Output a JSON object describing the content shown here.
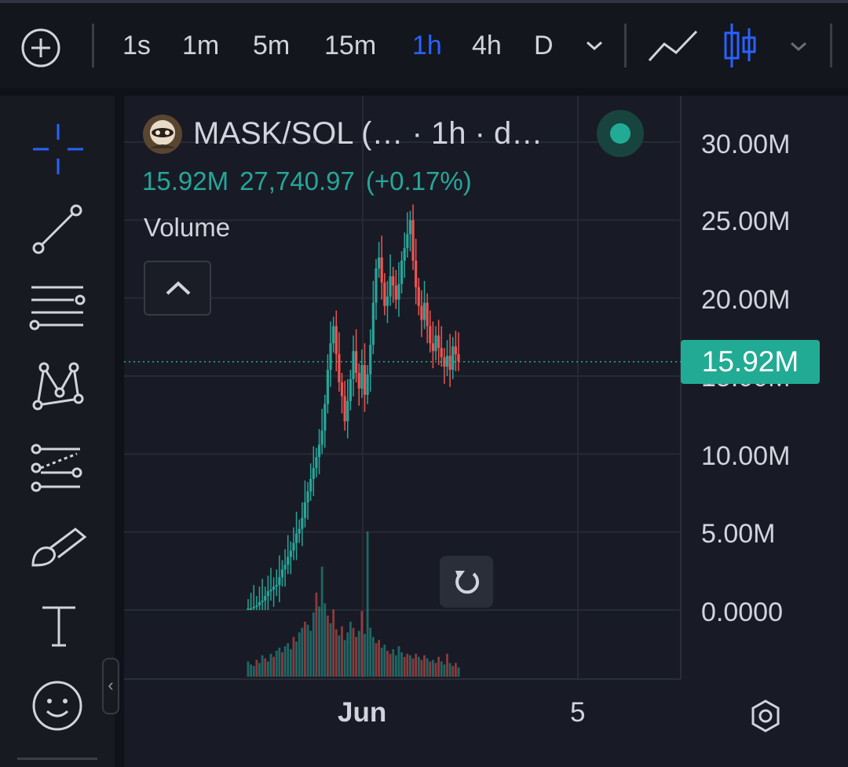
{
  "toolbar": {
    "add_label": "+",
    "timeframes": [
      "1s",
      "1m",
      "5m",
      "15m",
      "1h",
      "4h",
      "D"
    ],
    "active_timeframe": "1h"
  },
  "tools": [
    "crosshair-icon",
    "trend-line-icon",
    "horizontal-lines-icon",
    "pattern-icon",
    "prediction-icon",
    "brush-icon",
    "text-icon",
    "emoji-icon"
  ],
  "legend": {
    "title": "MASK/SOL (…   · 1h · d…",
    "last_value": "15.92M",
    "price": "27,740.97",
    "change": "(+0.17%)",
    "volume_label": "Volume"
  },
  "price_badge": "15.92M",
  "colors": {
    "up": "#26a69a",
    "down": "#ef5350",
    "accent": "#2962ff",
    "badge": "#22ab94"
  },
  "chart_data": {
    "type": "candlestick",
    "title": "",
    "xlabel": "",
    "ylabel": "",
    "y_ticks": [
      "30.00M",
      "25.00M",
      "20.00M",
      "15.00M",
      "10.00M",
      "5.00M",
      "0.0000"
    ],
    "x_ticks": [
      "Jun",
      "5"
    ],
    "ylim": [
      0,
      30000000
    ],
    "grid": true,
    "last_value": 15920000,
    "close_series_millions": [
      0.1,
      0.1,
      0.2,
      0.3,
      0.5,
      0.6,
      0.9,
      1.2,
      1.3,
      1.5,
      1.6,
      2.1,
      2.6,
      2.9,
      3.4,
      3.8,
      4.3,
      4.9,
      5.2,
      5.9,
      6.9,
      7.6,
      8.4,
      9.1,
      9.8,
      10.6,
      11.5,
      13.2,
      15.4,
      17.1,
      18.2,
      16.4,
      14.6,
      13.7,
      12.1,
      13.4,
      14.8,
      16.6,
      15.2,
      14.2,
      15.7,
      13.8,
      15.1,
      17.0,
      19.7,
      21.9,
      22.6,
      21.0,
      19.5,
      20.1,
      21.4,
      20.8,
      19.9,
      20.9,
      22.4,
      23.2,
      24.1,
      25.0,
      22.4,
      20.7,
      19.5,
      18.6,
      19.7,
      18.2,
      17.1,
      16.6,
      17.6,
      16.8,
      16.2,
      15.6,
      16.3,
      15.4,
      16.9,
      16.4,
      15.92
    ],
    "volume_series": [
      20,
      16,
      14,
      22,
      18,
      28,
      24,
      20,
      30,
      26,
      34,
      38,
      32,
      40,
      44,
      36,
      52,
      46,
      58,
      64,
      72,
      68,
      60,
      84,
      110,
      92,
      144,
      96,
      80,
      70,
      88,
      62,
      54,
      66,
      48,
      58,
      72,
      64,
      52,
      60,
      86,
      56,
      190,
      64,
      52,
      44,
      48,
      38,
      42,
      34,
      30,
      36,
      28,
      40,
      32,
      26,
      30,
      28,
      24,
      30,
      26,
      22,
      28,
      24,
      20,
      22,
      18,
      26,
      20,
      16,
      30,
      18,
      14,
      18,
      12
    ],
    "volume_up": [
      1,
      1,
      1,
      0,
      1,
      1,
      0,
      1,
      1,
      0,
      1,
      1,
      0,
      1,
      1,
      1,
      0,
      1,
      1,
      1,
      0,
      1,
      1,
      1,
      0,
      1,
      1,
      1,
      0,
      1,
      0,
      0,
      1,
      0,
      1,
      1,
      1,
      0,
      0,
      1,
      0,
      1,
      1,
      1,
      1,
      0,
      0,
      1,
      1,
      0,
      0,
      1,
      1,
      1,
      1,
      0,
      0,
      1,
      0,
      0,
      1,
      0,
      0,
      1,
      0,
      1,
      0,
      0,
      1,
      1,
      0,
      1,
      0,
      0,
      1
    ]
  }
}
